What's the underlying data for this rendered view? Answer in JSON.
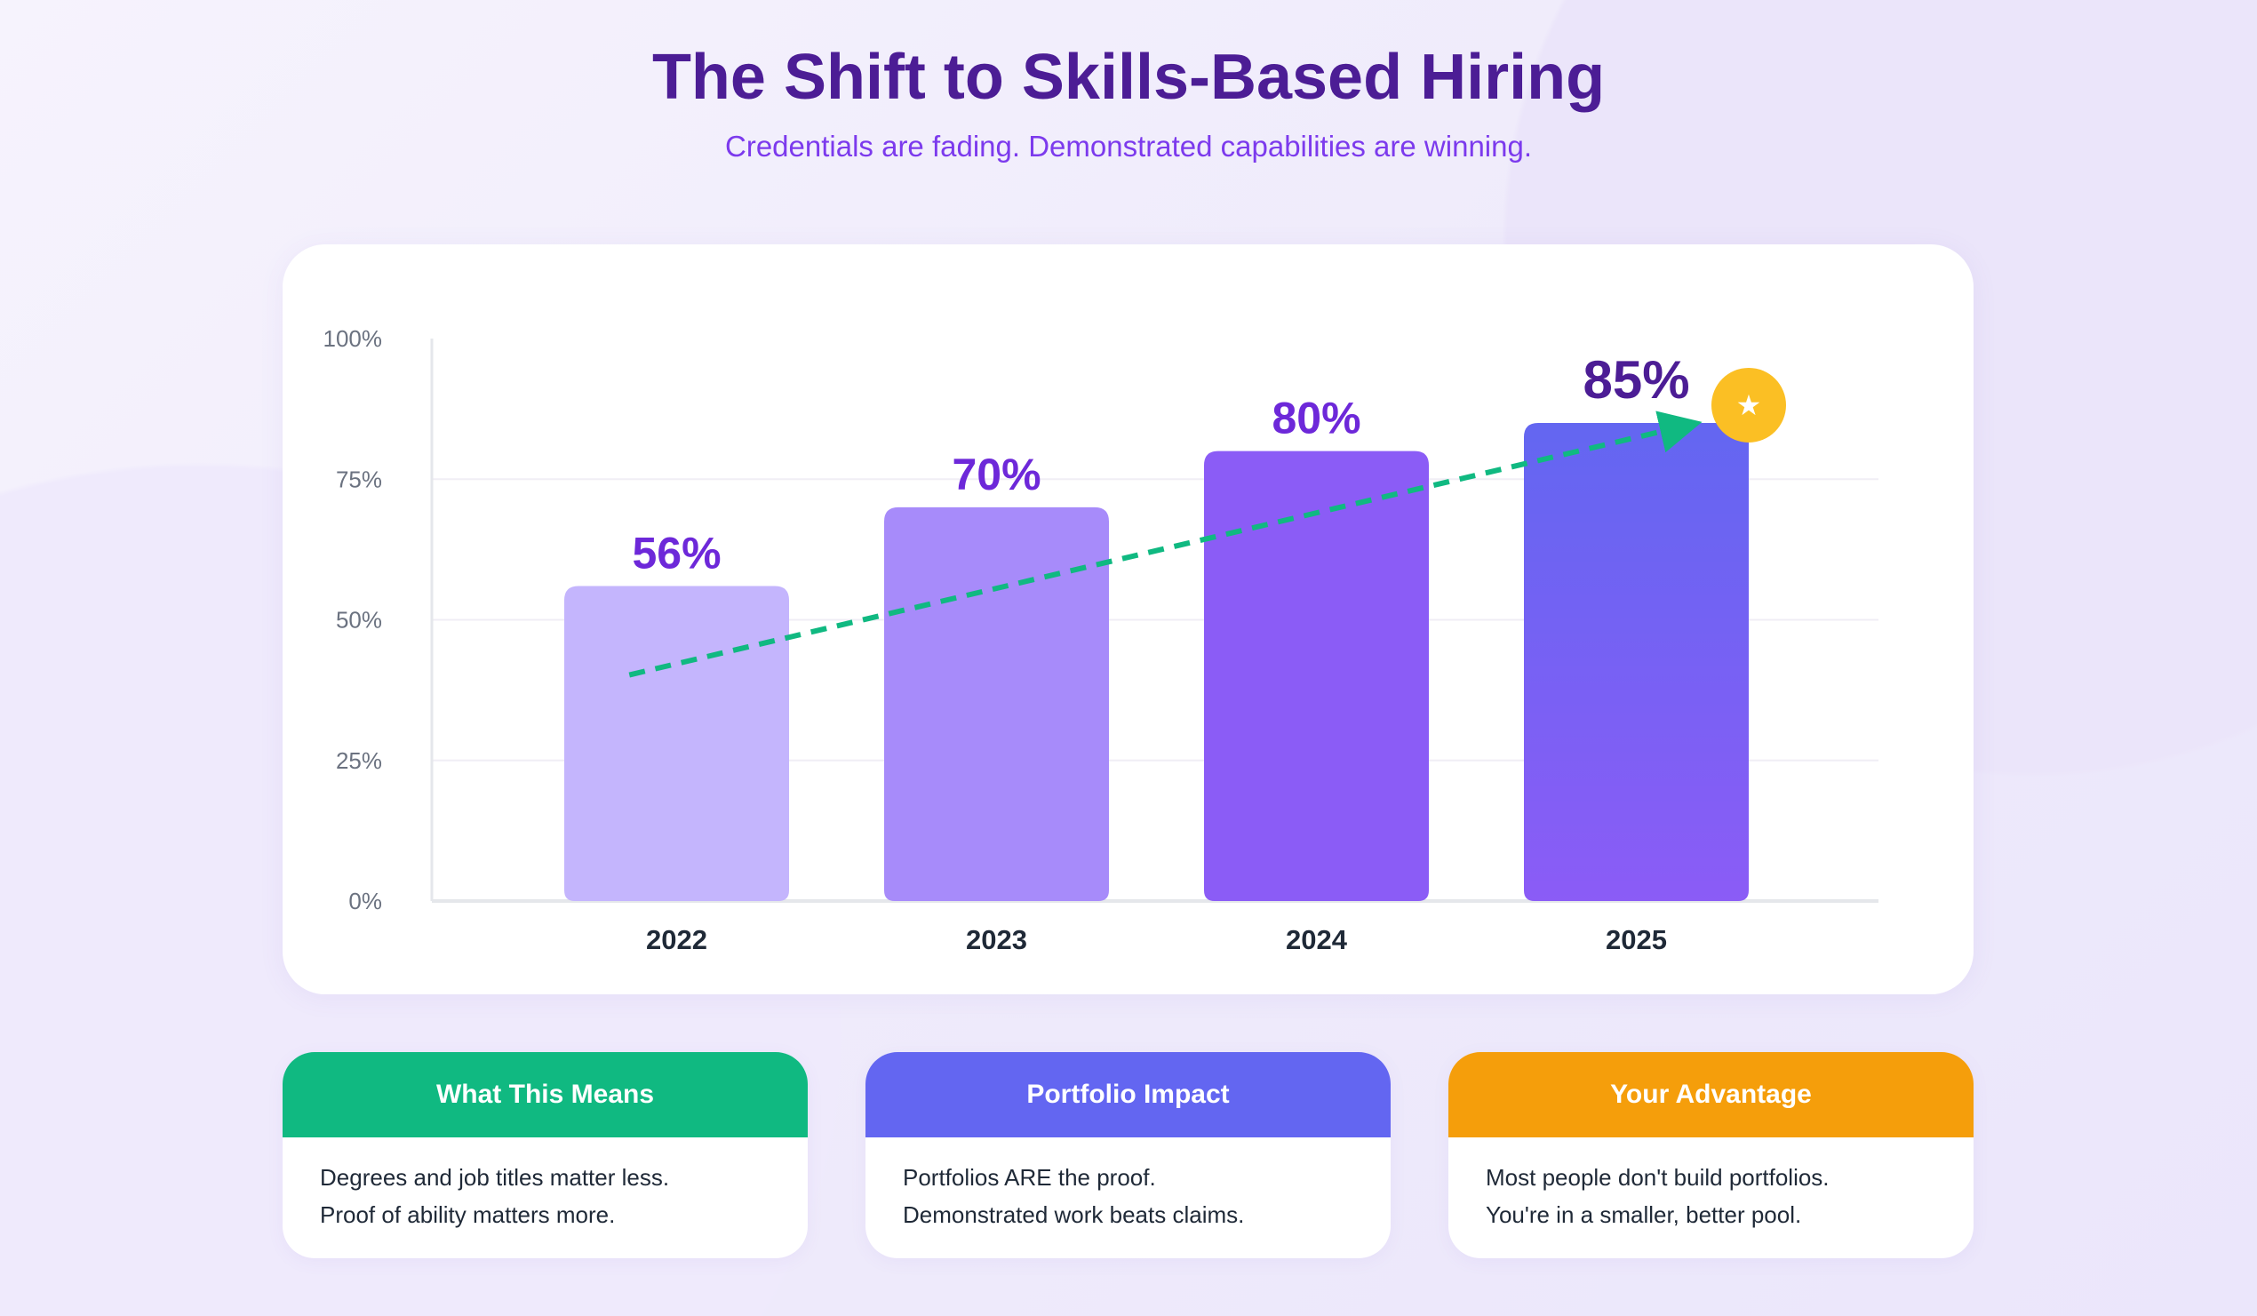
{
  "header": {
    "title": "The Shift to Skills-Based Hiring",
    "subtitle": "Credentials are fading. Demonstrated capabilities are winning."
  },
  "chart_data": {
    "type": "bar",
    "categories": [
      "2022",
      "2023",
      "2024",
      "2025"
    ],
    "values": [
      56,
      70,
      80,
      85
    ],
    "data_labels": [
      "56%",
      "70%",
      "80%",
      "85%"
    ],
    "ylim": [
      0,
      100
    ],
    "yticks": [
      0,
      25,
      50,
      75,
      100
    ],
    "ytick_labels": [
      "0%",
      "25%",
      "50%",
      "75%",
      "100%"
    ],
    "grid": true,
    "bar_colors": [
      "#c4b5fd",
      "#a78bfa",
      "#8b5cf6",
      "#6366f1"
    ],
    "trend_line": {
      "style": "dashed-arrow",
      "color": "#10b981"
    },
    "highlight": {
      "category": "2025",
      "icon": "star-icon",
      "color": "#fbbf24"
    }
  },
  "cards": [
    {
      "title": "What This Means",
      "color": "#10b981",
      "lines": [
        "Degrees and job titles matter less.",
        "Proof of ability matters more."
      ]
    },
    {
      "title": "Portfolio Impact",
      "color": "#6366f1",
      "lines": [
        "Portfolios ARE the proof.",
        "Demonstrated work beats claims."
      ]
    },
    {
      "title": "Your Advantage",
      "color": "#f59e0b",
      "lines": [
        "Most people don't build portfolios.",
        "You're in a smaller, better pool."
      ]
    }
  ]
}
